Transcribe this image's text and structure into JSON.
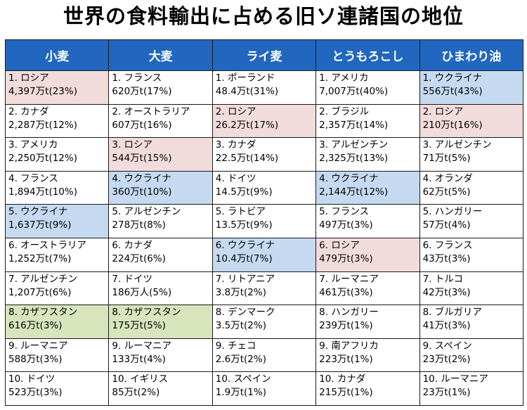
{
  "title": "世界の食料輸出に占める旧ソ連諸国の地位",
  "colors": {
    "header_bg": "#2167c0",
    "russia_highlight": "#f2dcdb",
    "ukraine_highlight": "#c5d9f1",
    "kazakhstan_highlight": "#d8e4bc"
  },
  "table": {
    "headers": [
      "小麦",
      "大麦",
      "ライ麦",
      "とうもろこし",
      "ひまわり油"
    ],
    "rows": [
      [
        {
          "country": "1. ロシア",
          "amount": "4,397万t(23%)",
          "hl": "russia"
        },
        {
          "country": "1. フランス",
          "amount": "620万t(17%)",
          "hl": ""
        },
        {
          "country": "1. ポーランド",
          "amount": "48.4万t(31%)",
          "hl": ""
        },
        {
          "country": "1. アメリカ",
          "amount": "7,007万t(40%)",
          "hl": ""
        },
        {
          "country": "1. ウクライナ",
          "amount": "556万t(43%)",
          "hl": "ukraine"
        }
      ],
      [
        {
          "country": "2. カナダ",
          "amount": "2,287万t(12%)",
          "hl": ""
        },
        {
          "country": "2. オーストラリア",
          "amount": "607万t(16%)",
          "hl": ""
        },
        {
          "country": "2. ロシア",
          "amount": "26.2万t(17%)",
          "hl": "russia"
        },
        {
          "country": "2. ブラジル",
          "amount": "2,357万t(14%)",
          "hl": ""
        },
        {
          "country": "2. ロシア",
          "amount": "210万t(16%)",
          "hl": "russia"
        }
      ],
      [
        {
          "country": "3. アメリカ",
          "amount": "2,250万t(12%)",
          "hl": ""
        },
        {
          "country": "3. ロシア",
          "amount": "544万t(15%)",
          "hl": "russia"
        },
        {
          "country": "3. カナダ",
          "amount": "22.5万t(14%)",
          "hl": ""
        },
        {
          "country": "3. アルゼンチン",
          "amount": "2,325万t(13%)",
          "hl": ""
        },
        {
          "country": "3. アルゼンチン",
          "amount": "71万t(5%)",
          "hl": ""
        }
      ],
      [
        {
          "country": "4. フランス",
          "amount": "1,894万t(10%)",
          "hl": ""
        },
        {
          "country": "4. ウクライナ",
          "amount": "360万t(10%)",
          "hl": "ukraine"
        },
        {
          "country": "4. ドイツ",
          "amount": "14.5万t(9%)",
          "hl": ""
        },
        {
          "country": "4. ウクライナ",
          "amount": "2,144万t(12%)",
          "hl": "ukraine"
        },
        {
          "country": "4. オランダ",
          "amount": "62万t(5%)",
          "hl": ""
        }
      ],
      [
        {
          "country": "5. ウクライナ",
          "amount": "1,637万t(9%)",
          "hl": "ukraine"
        },
        {
          "country": "5. アルゼンチン",
          "amount": "278万t(8%)",
          "hl": ""
        },
        {
          "country": "5. ラトビア",
          "amount": "13.5万t(9%)",
          "hl": ""
        },
        {
          "country": "5. フランス",
          "amount": "497万t(3%)",
          "hl": ""
        },
        {
          "country": "5. ハンガリー",
          "amount": "57万t(4%)",
          "hl": ""
        }
      ],
      [
        {
          "country": "6. オーストラリア",
          "amount": "1,252万t(7%)",
          "hl": ""
        },
        {
          "country": "6. カナダ",
          "amount": "224万t(6%)",
          "hl": ""
        },
        {
          "country": "6. ウクライナ",
          "amount": "10.4万t(7%)",
          "hl": "ukraine"
        },
        {
          "country": "6. ロシア",
          "amount": "479万t(3%)",
          "hl": "russia"
        },
        {
          "country": "6. フランス",
          "amount": "43万t(3%)",
          "hl": ""
        }
      ],
      [
        {
          "country": "7. アルゼンチン",
          "amount": "1,207万t(6%)",
          "hl": ""
        },
        {
          "country": "7. ドイツ",
          "amount": "186万人(5%)",
          "hl": ""
        },
        {
          "country": "7. リトアニア",
          "amount": "3.8万t(2%)",
          "hl": ""
        },
        {
          "country": "7. ルーマニア",
          "amount": "461万t(3%)",
          "hl": ""
        },
        {
          "country": "7. トルコ",
          "amount": "42万t(3%)",
          "hl": ""
        }
      ],
      [
        {
          "country": "8. カザフスタン",
          "amount": "616万t(3%)",
          "hl": "kazakhstan"
        },
        {
          "country": "8. カザフスタン",
          "amount": "175万t(5%)",
          "hl": "kazakhstan"
        },
        {
          "country": "8. デンマーク",
          "amount": "3.5万t(2%)",
          "hl": ""
        },
        {
          "country": "8. ハンガリー",
          "amount": "239万t(1%)",
          "hl": ""
        },
        {
          "country": "8. ブルガリア",
          "amount": "41万t(3%)",
          "hl": ""
        }
      ],
      [
        {
          "country": "9. ルーマニア",
          "amount": "588万t(3%)",
          "hl": ""
        },
        {
          "country": "9. ルーマニア",
          "amount": "133万t(4%)",
          "hl": ""
        },
        {
          "country": "9. チェコ",
          "amount": "2.6万t(2%)",
          "hl": ""
        },
        {
          "country": "9. 南アフリカ",
          "amount": "223万t(1%)",
          "hl": ""
        },
        {
          "country": "9. スペイン",
          "amount": "23万t(2%)",
          "hl": ""
        }
      ],
      [
        {
          "country": "10. ドイツ",
          "amount": "523万t(3%)",
          "hl": ""
        },
        {
          "country": "10. イギリス",
          "amount": "85万t(2%)",
          "hl": ""
        },
        {
          "country": "10. スペイン",
          "amount": "1.9万t(1%)",
          "hl": ""
        },
        {
          "country": "10. カナダ",
          "amount": "215万t(1%)",
          "hl": ""
        },
        {
          "country": "10. ルーマニア",
          "amount": "23万t(1%)",
          "hl": ""
        }
      ]
    ]
  }
}
